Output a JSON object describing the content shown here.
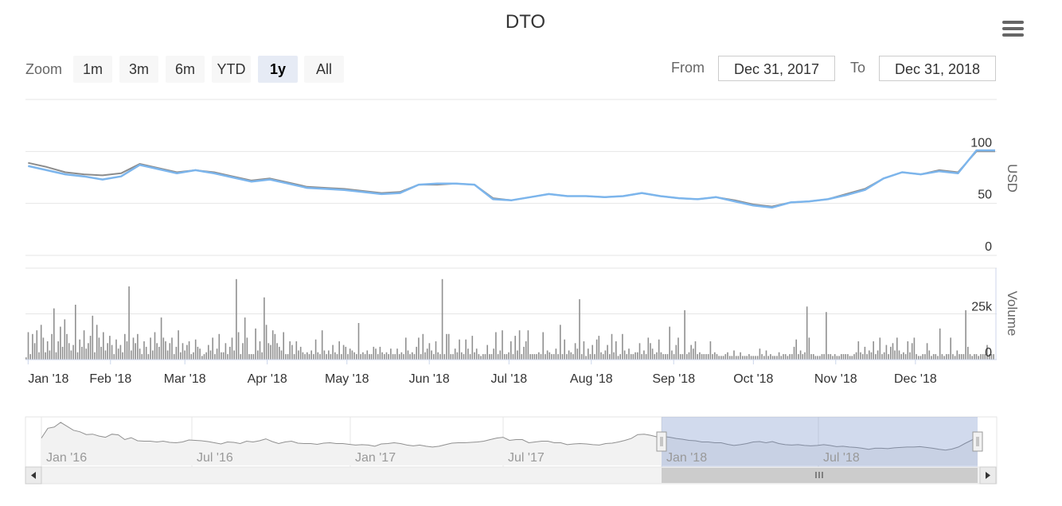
{
  "title": "DTO",
  "zoom": {
    "label": "Zoom",
    "buttons": [
      "1m",
      "3m",
      "6m",
      "YTD",
      "1y",
      "All"
    ],
    "selected": "1y"
  },
  "range": {
    "from_label": "From",
    "from_value": "Dec 31, 2017",
    "to_label": "To",
    "to_value": "Dec 31, 2018"
  },
  "chart_data": {
    "type": "line",
    "x_tick_labels": [
      "Jan '18",
      "Feb '18",
      "Mar '18",
      "Apr '18",
      "May '18",
      "Jun '18",
      "Jul '18",
      "Aug '18",
      "Sep '18",
      "Oct '18",
      "Nov '18",
      "Dec '18"
    ],
    "price_axis": {
      "title": "USD",
      "ticks": [
        "0",
        "50",
        "100"
      ],
      "ylim": [
        0,
        150
      ]
    },
    "volume_axis": {
      "title": "Volume",
      "ticks": [
        "0",
        "25k"
      ],
      "ylim": [
        0,
        50000
      ]
    },
    "price_series": [
      {
        "color": "#8c8c8c",
        "x": [
          "2018-01-01",
          "2018-01-08",
          "2018-01-15",
          "2018-01-22",
          "2018-01-29",
          "2018-02-05",
          "2018-02-12",
          "2018-02-19",
          "2018-02-26",
          "2018-03-05",
          "2018-03-12",
          "2018-03-19",
          "2018-03-26",
          "2018-04-02",
          "2018-04-09",
          "2018-04-16",
          "2018-04-23",
          "2018-04-30",
          "2018-05-07",
          "2018-05-14",
          "2018-05-21",
          "2018-05-28",
          "2018-06-04",
          "2018-06-11",
          "2018-06-18",
          "2018-06-25",
          "2018-07-02",
          "2018-07-09",
          "2018-07-16",
          "2018-07-23",
          "2018-07-30",
          "2018-08-06",
          "2018-08-13",
          "2018-08-20",
          "2018-08-27",
          "2018-09-03",
          "2018-09-10",
          "2018-09-17",
          "2018-09-24",
          "2018-10-01",
          "2018-10-08",
          "2018-10-15",
          "2018-10-22",
          "2018-10-29",
          "2018-11-05",
          "2018-11-12",
          "2018-11-19",
          "2018-11-26",
          "2018-12-03",
          "2018-12-10",
          "2018-12-17",
          "2018-12-24",
          "2018-12-31"
        ],
        "y": [
          89,
          85,
          80,
          78,
          77,
          79,
          88,
          84,
          80,
          82,
          80,
          76,
          72,
          74,
          70,
          66,
          65,
          64,
          62,
          60,
          61,
          68,
          68,
          69,
          68,
          55,
          53,
          56,
          59,
          57,
          57,
          56,
          57,
          60,
          57,
          55,
          54,
          56,
          53,
          49,
          47,
          51,
          52,
          54,
          59,
          64,
          74,
          80,
          78,
          82,
          80,
          100,
          100
        ]
      },
      {
        "color": "#7cb5ec",
        "x": [
          "2018-01-01",
          "2018-01-08",
          "2018-01-15",
          "2018-01-22",
          "2018-01-29",
          "2018-02-05",
          "2018-02-12",
          "2018-02-19",
          "2018-02-26",
          "2018-03-05",
          "2018-03-12",
          "2018-03-19",
          "2018-03-26",
          "2018-04-02",
          "2018-04-09",
          "2018-04-16",
          "2018-04-23",
          "2018-04-30",
          "2018-05-07",
          "2018-05-14",
          "2018-05-21",
          "2018-05-28",
          "2018-06-04",
          "2018-06-11",
          "2018-06-18",
          "2018-06-25",
          "2018-07-02",
          "2018-07-09",
          "2018-07-16",
          "2018-07-23",
          "2018-07-30",
          "2018-08-06",
          "2018-08-13",
          "2018-08-20",
          "2018-08-27",
          "2018-09-03",
          "2018-09-10",
          "2018-09-17",
          "2018-09-24",
          "2018-10-01",
          "2018-10-08",
          "2018-10-15",
          "2018-10-22",
          "2018-10-29",
          "2018-11-05",
          "2018-11-12",
          "2018-11-19",
          "2018-11-26",
          "2018-12-03",
          "2018-12-10",
          "2018-12-17",
          "2018-12-24",
          "2018-12-31"
        ],
        "y": [
          86,
          82,
          78,
          76,
          73,
          76,
          87,
          83,
          79,
          82,
          79,
          75,
          71,
          73,
          69,
          65,
          64,
          63,
          61,
          59,
          60,
          68,
          69,
          69,
          68,
          54,
          53,
          56,
          59,
          57,
          57,
          56,
          57,
          60,
          57,
          55,
          54,
          56,
          52,
          48,
          46,
          51,
          52,
          54,
          58,
          63,
          74,
          80,
          78,
          81,
          79,
          101,
          101
        ]
      }
    ],
    "volume_series": {
      "color": "#909090",
      "values": [
        1200,
        15000,
        3000,
        14000,
        9000,
        16000,
        4000,
        19000,
        12000,
        4000,
        10000,
        5000,
        14000,
        28000,
        4000,
        10000,
        18000,
        7000,
        22000,
        14000,
        9000,
        5000,
        8000,
        30000,
        4000,
        11000,
        7000,
        16000,
        6000,
        9000,
        13000,
        24000,
        4000,
        19000,
        12000,
        7000,
        15000,
        5000,
        9000,
        13000,
        8000,
        3000,
        11000,
        6000,
        8000,
        4000,
        14000,
        10000,
        40000,
        5000,
        12000,
        9000,
        14000,
        6000,
        3000,
        10000,
        7000,
        3000,
        12000,
        5000,
        15000,
        9000,
        7000,
        23000,
        12000,
        10000,
        5000,
        9000,
        12000,
        3000,
        7000,
        16000,
        4000,
        9000,
        5000,
        8000,
        10000,
        3000,
        4000,
        11000,
        7000,
        6000,
        2000,
        3000,
        4000,
        8000,
        5000,
        12000,
        3000,
        6000,
        14000,
        4000,
        4000,
        9000,
        3000,
        7000,
        12000,
        5000,
        44000,
        15000,
        3000,
        9000,
        23000,
        12000,
        3000,
        3000,
        3000,
        17000,
        5000,
        10000,
        4000,
        34000,
        19000,
        9000,
        8000,
        16000,
        14000,
        9000,
        7000,
        5000,
        15000,
        3000,
        3000,
        10000,
        8000,
        3000,
        10000,
        5000,
        7000,
        4000,
        3000,
        4000,
        3000,
        5000,
        3000,
        11000,
        4000,
        3000,
        16000,
        5000,
        3000,
        5000,
        3000,
        8000,
        4000,
        3000,
        10000,
        3000,
        8000,
        7000,
        3000,
        6000,
        5000,
        4000,
        3000,
        20000,
        3000,
        4000,
        3000,
        5000,
        3000,
        3000,
        7000,
        6000,
        3000,
        7000,
        4000,
        3000,
        4000,
        3000,
        6000,
        3000,
        3000,
        6000,
        3000,
        4000,
        3000,
        12000,
        5000,
        3000,
        4000,
        3000,
        7000,
        12000,
        3000,
        14000,
        4000,
        6000,
        9000,
        5000,
        3000,
        10000,
        4000,
        3000,
        44000,
        3000,
        14000,
        14000,
        3000,
        3000,
        6000,
        4000,
        11000,
        4000,
        3000,
        11000,
        6000,
        3000,
        13000,
        4000,
        6000,
        3000,
        2000,
        3000,
        3000,
        8000,
        3000,
        3000,
        6000,
        15000,
        3000,
        5000,
        16000,
        3000,
        3000,
        4000,
        10000,
        3000,
        13000,
        5000,
        16000,
        3000,
        7000,
        10000,
        16000,
        3000,
        3000,
        3000,
        3000,
        4000,
        3000,
        15000,
        3000,
        5000,
        4000,
        3000,
        3000,
        6000,
        3000,
        19000,
        3000,
        11000,
        3000,
        5000,
        4000,
        3000,
        9000,
        6000,
        33000,
        3000,
        10000,
        2000,
        6000,
        3000,
        8000,
        3000,
        11000,
        13000,
        4000,
        3000,
        5000,
        8000,
        3000,
        14000,
        4000,
        10000,
        2000,
        3000,
        14000,
        5000,
        3000,
        6000,
        3000,
        3000,
        4000,
        4000,
        9000,
        3000,
        5000,
        3000,
        12000,
        9000,
        6000,
        3000,
        4000,
        11000,
        4000,
        3000,
        3000,
        3000,
        18000,
        5000,
        3000,
        8000,
        12000,
        3000,
        3000,
        27000,
        3000,
        4000,
        8000,
        6000,
        10000,
        3000,
        4000,
        3000,
        3000,
        3000,
        3000,
        10000,
        3000,
        4000,
        3000,
        2000,
        2000,
        2000,
        3000,
        4000,
        2000,
        2000,
        5000,
        2000,
        2000,
        4000,
        2000,
        2000,
        2000,
        3000,
        2000,
        2000,
        2000,
        2000,
        6000,
        3000,
        2000,
        5000,
        2000,
        3000,
        2000,
        2000,
        2000,
        4000,
        2000,
        3000,
        3000,
        2000,
        3000,
        3000,
        7000,
        11000,
        3000,
        5000,
        3000,
        4000,
        29000,
        12000,
        3000,
        3000,
        2000,
        2000,
        2000,
        3000,
        3000,
        26000,
        3000,
        3000,
        2000,
        3000,
        2000,
        2000,
        3000,
        3000,
        3000,
        3000,
        2000,
        2000,
        3000,
        4000,
        10000,
        4000,
        3000,
        7000,
        3000,
        5000,
        4000,
        10000,
        3000,
        5000,
        12000,
        3000,
        4000,
        8000,
        3000,
        7000,
        9000,
        5000,
        12000,
        5000,
        3000,
        4000,
        3000,
        10000,
        4000,
        9000,
        12000,
        3000,
        2000,
        2000,
        3000,
        3000,
        9000,
        5000,
        2000,
        3000,
        3000,
        2000,
        17000,
        3000,
        2000,
        3000,
        3000,
        12000,
        3000,
        2000,
        5000,
        3000,
        3000,
        3000,
        27000,
        7000,
        3000,
        2000,
        3000,
        3000,
        2000,
        3000,
        3000,
        3000,
        8000,
        3000,
        3000,
        3000
      ]
    },
    "navigator": {
      "x_tick_labels": [
        "Jan '16",
        "Jul '16",
        "Jan '17",
        "Jul '17",
        "Jan '18",
        "Jul '18"
      ],
      "series": [
        70,
        95,
        98,
        110,
        100,
        90,
        86,
        79,
        80,
        75,
        72,
        80,
        78,
        66,
        71,
        63,
        62,
        62,
        60,
        62,
        59,
        58,
        60,
        65,
        64,
        63,
        61,
        58,
        55,
        60,
        59,
        56,
        62,
        60,
        63,
        68,
        61,
        56,
        60,
        62,
        57,
        56,
        56,
        54,
        57,
        58,
        56,
        56,
        54,
        52,
        53,
        52,
        49,
        55,
        56,
        58,
        56,
        52,
        50,
        52,
        49,
        47,
        49,
        53,
        57,
        58,
        58,
        59,
        60,
        62,
        66,
        70,
        72,
        64,
        66,
        66,
        58,
        60,
        62,
        62,
        58,
        58,
        53,
        55,
        56,
        55,
        53,
        52,
        56,
        57,
        60,
        64,
        69,
        79,
        80,
        77,
        73,
        74,
        72,
        69,
        67,
        64,
        63,
        60,
        60,
        58,
        58,
        54,
        51,
        53,
        56,
        60,
        61,
        58,
        61,
        56,
        53,
        52,
        53,
        51,
        50,
        51,
        53,
        51,
        48,
        49,
        47,
        46,
        44,
        41,
        44,
        44,
        43,
        45,
        46,
        47,
        47,
        48,
        46,
        44,
        41,
        39,
        42,
        47,
        56,
        64,
        74
      ],
      "range_start": "Dec 31, 2017",
      "range_end": "Dec 31, 2018"
    }
  }
}
